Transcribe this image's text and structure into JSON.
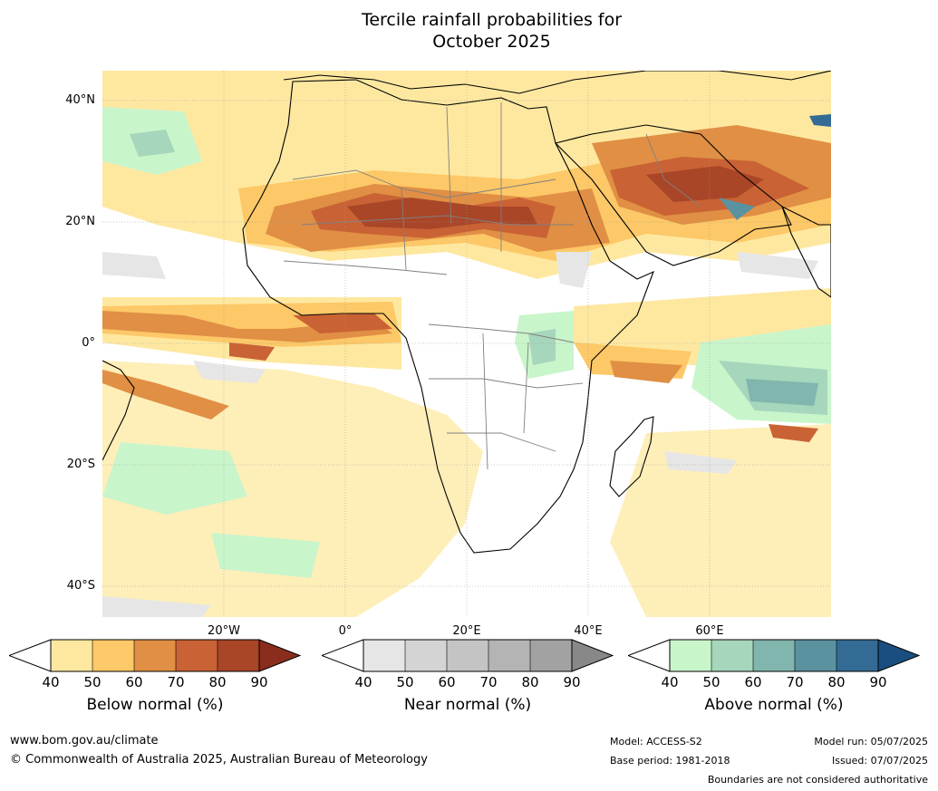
{
  "title_line1": "Tercile rainfall probabilities for",
  "title_line2": "October 2025",
  "map": {
    "lat_labels": [
      "40°N",
      "20°N",
      "0°",
      "20°S",
      "40°S"
    ],
    "lon_labels": [
      "20°W",
      "0°",
      "20°E",
      "40°E",
      "60°E"
    ],
    "colors": {
      "ocean_bg": "#ffffff",
      "land_bg": "#ffffff",
      "coastline": "#000000",
      "border": "#808080",
      "grid": "#999999"
    }
  },
  "colorbars": [
    {
      "label": "Below normal (%)",
      "ticks": [
        "40",
        "50",
        "60",
        "70",
        "80",
        "90"
      ],
      "colors": [
        "#ffffff",
        "#fee8a0",
        "#fdc867",
        "#e08f44",
        "#c96234",
        "#a94628",
        "#8a2d1c"
      ]
    },
    {
      "label": "Near normal (%)",
      "ticks": [
        "40",
        "50",
        "60",
        "70",
        "80",
        "90"
      ],
      "colors": [
        "#ffffff",
        "#e6e6e6",
        "#d4d4d4",
        "#c4c4c4",
        "#b4b4b4",
        "#a2a2a2",
        "#888888"
      ]
    },
    {
      "label": "Above normal (%)",
      "ticks": [
        "40",
        "50",
        "60",
        "70",
        "80",
        "90"
      ],
      "colors": [
        "#ffffff",
        "#c9f5cb",
        "#a6d6bb",
        "#80b6ad",
        "#5a92a0",
        "#336b95",
        "#1b4e80"
      ]
    }
  ],
  "footer": {
    "website": "www.bom.gov.au/climate",
    "copyright": "© Commonwealth of Australia 2025, Australian Bureau of Meteorology",
    "model": "Model: ACCESS-S2",
    "base_period": "Base period: 1981-2018",
    "model_run": "Model run: 05/07/2025",
    "issued": "Issued: 07/07/2025",
    "disclaimer": "Boundaries are not considered authoritative"
  }
}
